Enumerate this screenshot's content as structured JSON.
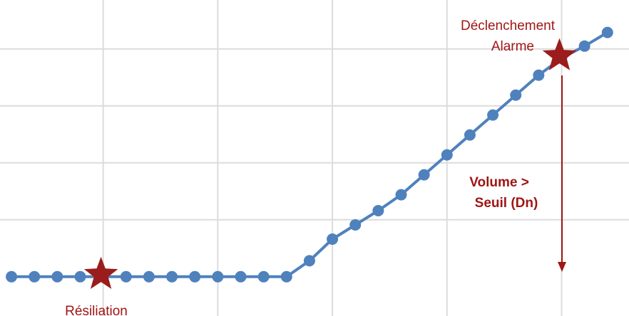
{
  "chart_data": {
    "type": "line",
    "x": [
      0,
      1,
      2,
      3,
      4,
      5,
      6,
      7,
      8,
      9,
      10,
      11,
      12,
      13,
      14,
      15,
      16,
      17,
      18,
      19,
      20,
      21,
      22,
      23,
      24,
      25,
      26
    ],
    "series": [
      {
        "color": "#4f81bd",
        "values": [
          0,
          0,
          0,
          0,
          0,
          0,
          0,
          0,
          0,
          0,
          0,
          0,
          0,
          0.28,
          0.66,
          0.91,
          1.16,
          1.44,
          1.79,
          2.14,
          2.49,
          2.84,
          3.19,
          3.54,
          3.84,
          4.05,
          4.29
        ]
      }
    ],
    "xlim": [
      -0.5,
      26.94
    ],
    "ylim": [
      -0.69,
      4.86
    ],
    "xticks": [
      4,
      9,
      14,
      19,
      24
    ],
    "yticks": [
      1,
      2,
      3,
      4
    ],
    "grid": true,
    "marker_color": "#9b1c1c",
    "annotations": {
      "start": "Résiliation",
      "alarm": [
        "Déclenchement",
        "Alarme"
      ],
      "gap": [
        "Volume >",
        "Seuil (Dn)"
      ]
    }
  }
}
